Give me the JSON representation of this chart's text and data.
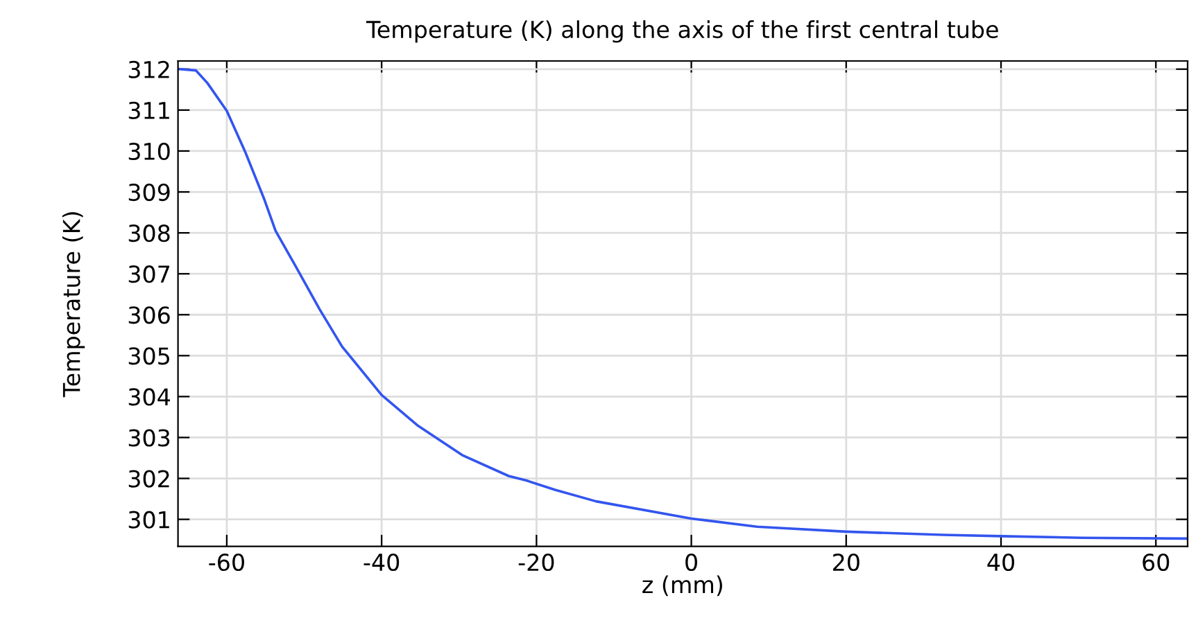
{
  "chart_data": {
    "type": "line",
    "title": "Temperature (K) along the axis of the first central tube",
    "xlabel": "z (mm)",
    "ylabel": "Temperature (K)",
    "x": [
      -66.0,
      -64.0,
      -62.5,
      -60.0,
      -57.6,
      -55.2,
      -53.7,
      -51.0,
      -48.0,
      -45.1,
      -40.0,
      -35.4,
      -29.6,
      -23.6,
      -21.3,
      -17.6,
      -12.3,
      0,
      8.5,
      20,
      32.5,
      40,
      50.5,
      64.1
    ],
    "series": [
      {
        "color": "#3355ee",
        "values": [
          312.0,
          311.97,
          311.66,
          310.98,
          309.97,
          308.84,
          308.05,
          307.15,
          306.13,
          305.22,
          304.04,
          303.3,
          302.57,
          302.06,
          301.95,
          301.72,
          301.44,
          301.02,
          300.82,
          300.7,
          300.62,
          300.59,
          300.55,
          300.53
        ]
      }
    ],
    "xlim": [
      -66.3,
      64.1
    ],
    "ylim": [
      300.34,
      312.2
    ],
    "xticks": [
      -60,
      -40,
      -20,
      0,
      20,
      40,
      60
    ],
    "yticks": [
      301,
      302,
      303,
      304,
      305,
      306,
      307,
      308,
      309,
      310,
      311,
      312
    ],
    "grid": true,
    "legend": false,
    "marker": "none",
    "line_style": "solid"
  }
}
